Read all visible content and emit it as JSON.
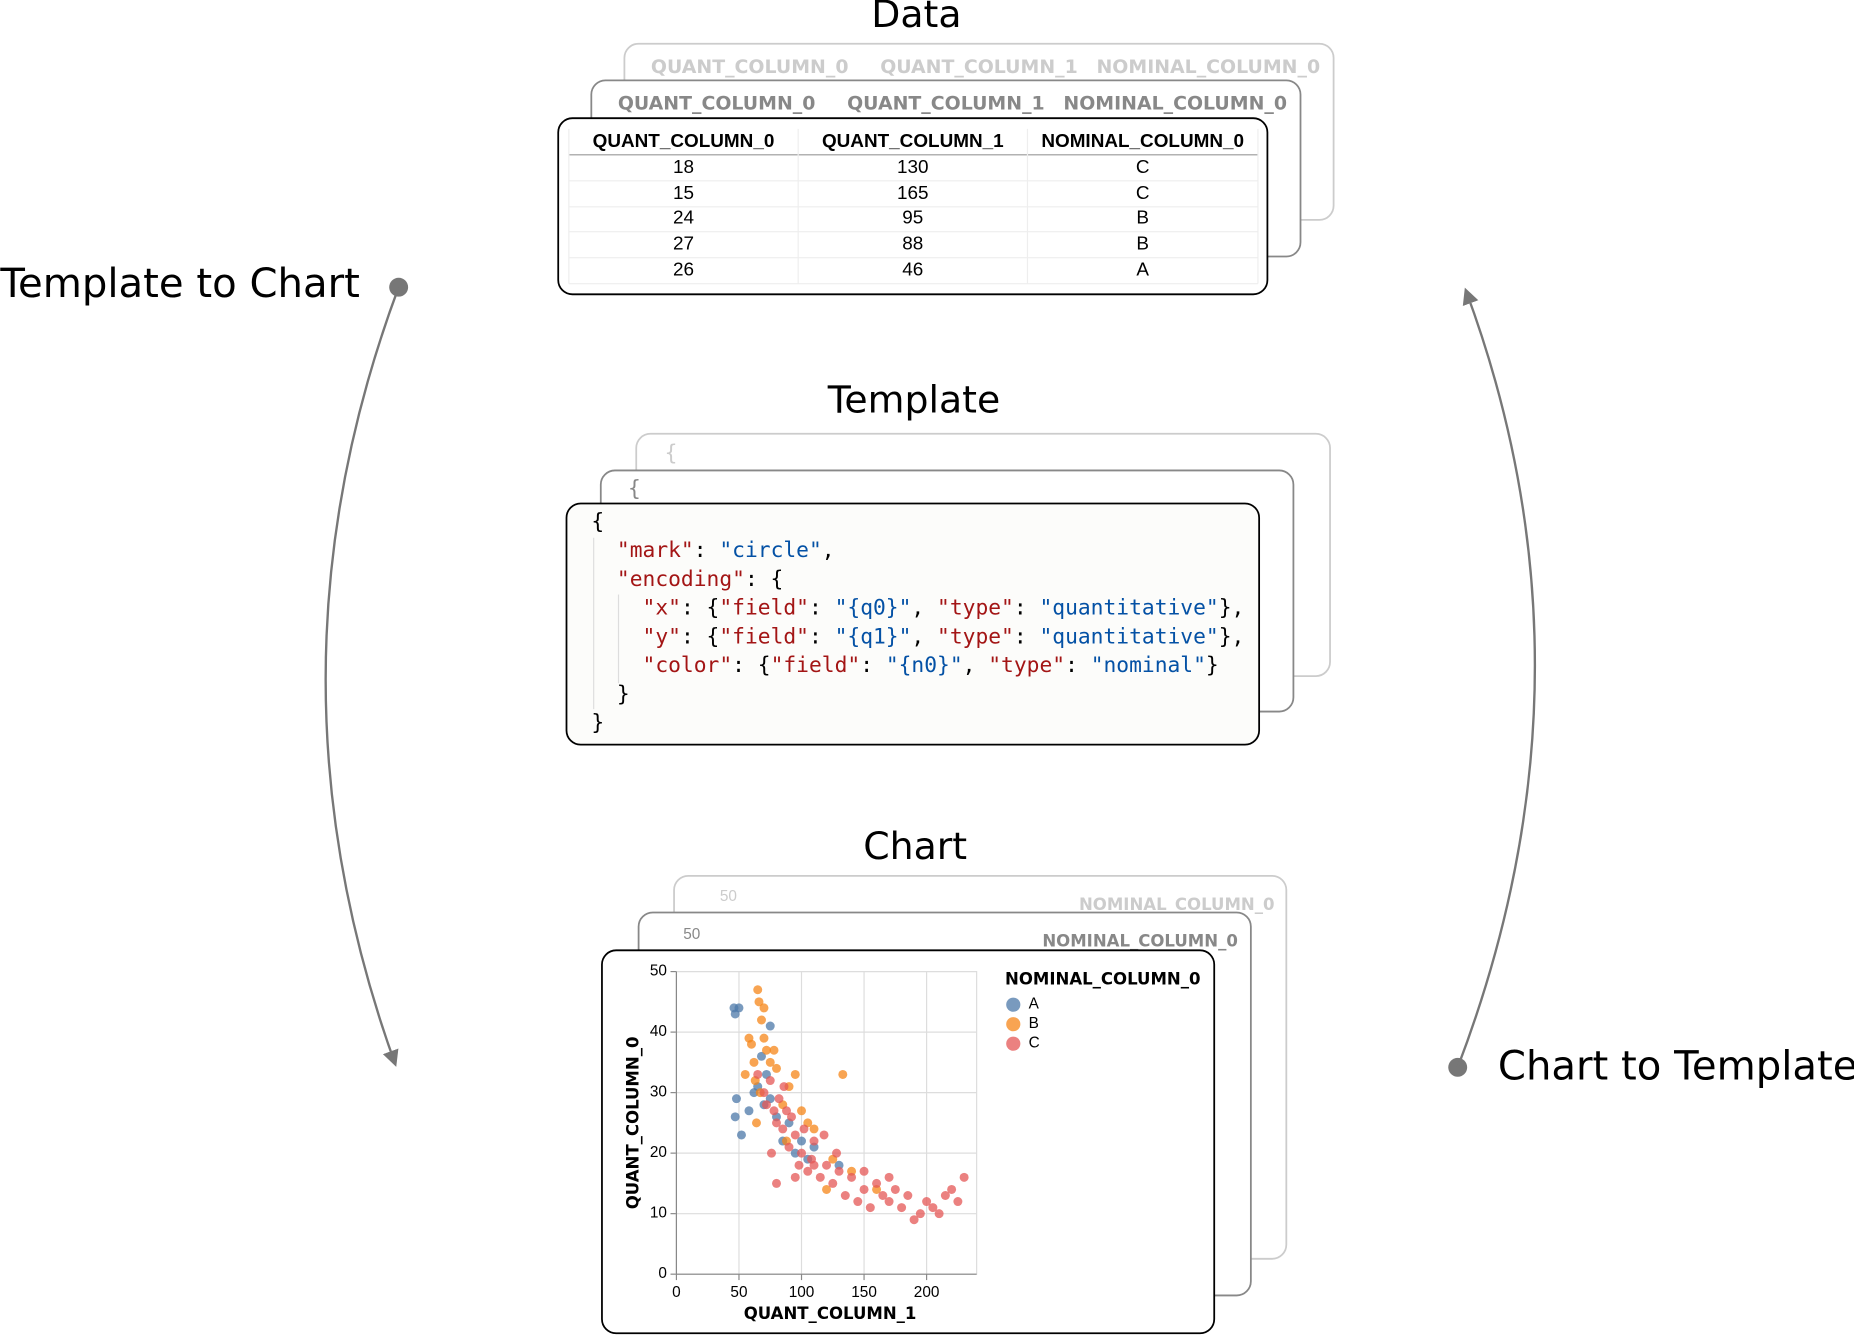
{
  "titles": {
    "data": "Data",
    "template": "Template",
    "chart": "Chart"
  },
  "arrows": {
    "left": "Template to Chart",
    "right": "Chart to Template"
  },
  "table": {
    "header": [
      "QUANT_COLUMN_0",
      "QUANT_COLUMN_1",
      "NOMINAL_COLUMN_0"
    ],
    "rows": [
      [
        18,
        130,
        "C"
      ],
      [
        15,
        165,
        "C"
      ],
      [
        24,
        95,
        "B"
      ],
      [
        27,
        88,
        "B"
      ],
      [
        26,
        46,
        "A"
      ]
    ]
  },
  "template": {
    "lines": [
      [
        [
          "{",
          "#000000"
        ]
      ],
      [
        [
          "  \"mark\"",
          "#a31515"
        ],
        [
          ": ",
          "#000000"
        ],
        [
          "\"circle\"",
          "#0451a5"
        ],
        [
          ",",
          "#000000"
        ]
      ],
      [
        [
          "  \"encoding\"",
          "#a31515"
        ],
        [
          ": {",
          "#000000"
        ]
      ],
      [
        [
          "    \"x\"",
          "#a31515"
        ],
        [
          ": {",
          "#000000"
        ],
        [
          "\"field\"",
          "#a31515"
        ],
        [
          ": ",
          "#000000"
        ],
        [
          "\"{q0}\"",
          "#0451a5"
        ],
        [
          ", ",
          "#000000"
        ],
        [
          "\"type\"",
          "#a31515"
        ],
        [
          ": ",
          "#000000"
        ],
        [
          "\"quantitative\"",
          "#0451a5"
        ],
        [
          "},",
          "#000000"
        ]
      ],
      [
        [
          "    \"y\"",
          "#a31515"
        ],
        [
          ": {",
          "#000000"
        ],
        [
          "\"field\"",
          "#a31515"
        ],
        [
          ": ",
          "#000000"
        ],
        [
          "\"{q1}\"",
          "#0451a5"
        ],
        [
          ", ",
          "#000000"
        ],
        [
          "\"type\"",
          "#a31515"
        ],
        [
          ": ",
          "#000000"
        ],
        [
          "\"quantitative\"",
          "#0451a5"
        ],
        [
          "},",
          "#000000"
        ]
      ],
      [
        [
          "    \"color\"",
          "#a31515"
        ],
        [
          ": {",
          "#000000"
        ],
        [
          "\"field\"",
          "#a31515"
        ],
        [
          ": ",
          "#000000"
        ],
        [
          "\"{n0}\"",
          "#0451a5"
        ],
        [
          ", ",
          "#000000"
        ],
        [
          "\"type\"",
          "#a31515"
        ],
        [
          ": ",
          "#000000"
        ],
        [
          "\"nominal\"",
          "#0451a5"
        ],
        [
          "}",
          "#000000"
        ]
      ],
      [
        [
          "  }",
          "#000000"
        ]
      ],
      [
        [
          "}",
          "#000000"
        ]
      ]
    ]
  },
  "chart_data": {
    "type": "scatter",
    "x_label": "QUANT_COLUMN_1",
    "y_label": "QUANT_COLUMN_0",
    "legend_title": "NOMINAL_COLUMN_0",
    "xlim": [
      0,
      240
    ],
    "ylim": [
      0,
      50
    ],
    "xticks": [
      0,
      50,
      100,
      150,
      200
    ],
    "yticks": [
      0,
      10,
      20,
      30,
      40,
      50
    ],
    "grid": true,
    "series": [
      {
        "name": "A",
        "color": "#4c78a8",
        "x": [
          46,
          47,
          50,
          47,
          48,
          52,
          58,
          62,
          70,
          75,
          72,
          80,
          85,
          90,
          95,
          100,
          110,
          75,
          65,
          105,
          130,
          68
        ],
        "y": [
          44,
          43,
          44,
          26,
          29,
          23,
          27,
          30,
          28,
          41,
          33,
          26,
          22,
          25,
          20,
          22,
          21,
          29,
          31,
          19,
          18,
          36
        ]
      },
      {
        "name": "B",
        "color": "#f58518",
        "x": [
          55,
          60,
          62,
          65,
          66,
          68,
          70,
          72,
          75,
          58,
          63,
          67,
          80,
          85,
          90,
          95,
          100,
          105,
          110,
          125,
          133,
          140,
          160,
          70,
          78,
          88,
          64,
          120
        ],
        "y": [
          33,
          38,
          35,
          47,
          45,
          42,
          39,
          37,
          35,
          39,
          32,
          30,
          34,
          28,
          31,
          33,
          27,
          25,
          24,
          19,
          33,
          17,
          14,
          44,
          37,
          22,
          25,
          14
        ]
      },
      {
        "name": "C",
        "color": "#e45756",
        "x": [
          65,
          70,
          72,
          75,
          78,
          80,
          82,
          85,
          88,
          90,
          92,
          95,
          98,
          100,
          102,
          105,
          108,
          110,
          115,
          120,
          125,
          130,
          135,
          140,
          145,
          150,
          155,
          160,
          165,
          170,
          175,
          180,
          185,
          190,
          195,
          200,
          205,
          210,
          215,
          220,
          225,
          230,
          80,
          95,
          110,
          86,
          76,
          118,
          128,
          150,
          170
        ],
        "y": [
          33,
          30,
          28,
          32,
          27,
          25,
          29,
          24,
          27,
          21,
          26,
          23,
          18,
          20,
          24,
          17,
          19,
          22,
          16,
          18,
          15,
          17,
          13,
          16,
          12,
          14,
          11,
          15,
          13,
          12,
          14,
          11,
          13,
          9,
          10,
          12,
          11,
          10,
          13,
          14,
          12,
          16,
          15,
          16,
          18,
          31,
          20,
          23,
          20,
          17,
          16
        ]
      }
    ]
  }
}
